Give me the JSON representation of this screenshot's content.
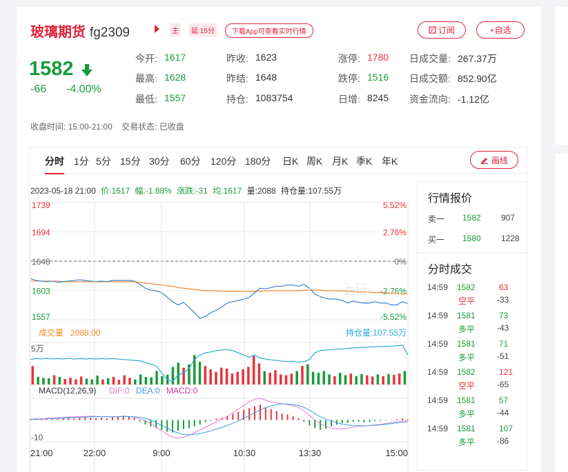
{
  "header": {
    "name": "玻璃期货",
    "code": "fg2309",
    "tag_main": "主",
    "tag_delay": "延 15分",
    "download_label": "下载App可查看实时行情",
    "subscribe_label": "订阅",
    "watch_label": "+自选"
  },
  "quote": {
    "price": "1582",
    "change": "-66",
    "change_pct": "-4.00%",
    "fields": [
      {
        "label": "今开:",
        "value": "1617",
        "color": "green"
      },
      {
        "label": "昨收:",
        "value": "1623",
        "color": "normal"
      },
      {
        "label": "涨停:",
        "value": "1780",
        "color": "red"
      },
      {
        "label": "日成交量:",
        "value": "267.37万",
        "color": "normal"
      },
      {
        "label": "最高:",
        "value": "1628",
        "color": "green"
      },
      {
        "label": "昨结:",
        "value": "1648",
        "color": "normal"
      },
      {
        "label": "跌停:",
        "value": "1516",
        "color": "green"
      },
      {
        "label": "日成交额:",
        "value": "852.90亿",
        "color": "normal"
      },
      {
        "label": "最低:",
        "value": "1557",
        "color": "green"
      },
      {
        "label": "持仓:",
        "value": "1083754",
        "color": "normal"
      },
      {
        "label": "日增:",
        "value": "8245",
        "color": "normal"
      },
      {
        "label": "资金流向:",
        "value": "-1.12亿",
        "color": "normal"
      }
    ]
  },
  "status": {
    "close_time_label": "收盘时间:",
    "close_time": "15:00-21:00",
    "trade_state_label": "交易状态:",
    "trade_state": "已收盘"
  },
  "tabs": [
    "分时",
    "1分",
    "5分",
    "15分",
    "30分",
    "60分",
    "120分",
    "180分",
    "日K",
    "周K",
    "月K",
    "季K",
    "年K"
  ],
  "active_tab": "分时",
  "draw_label": "画线",
  "chart_info": {
    "datetime": "2023-05-18 21:00",
    "price_label": "价:",
    "price": "1617",
    "amp_label": "幅:",
    "amp": "-1.88%",
    "chg_label": "涨跌:",
    "chg": "-31",
    "avg_label": "均:",
    "avg": "1617",
    "vol_label": "量:",
    "vol": "2088",
    "oi_label": "持仓量:",
    "oi": "107.55万"
  },
  "watermark": "上证",
  "chart_data": [
    {
      "type": "line",
      "title": "",
      "y_left_ticks": [
        "1739",
        "1694",
        "1648",
        "1603",
        "1557"
      ],
      "y_right_ticks": [
        "5.52%",
        "2.76%",
        "0%",
        "-2.76%",
        "-5.52%"
      ],
      "x_ticks": [
        "21:00",
        "22:00",
        "9:00",
        "10:30",
        "13:30",
        "15:00"
      ],
      "ylim": [
        1557,
        1739
      ],
      "prev_settle": 1648,
      "series": [
        {
          "values": [
            1621,
            1618,
            1617,
            1616,
            1617,
            1615,
            1616,
            1617,
            1618,
            1619,
            1618,
            1617,
            1616,
            1617,
            1616,
            1618,
            1618,
            1618,
            1618,
            1617,
            1612,
            1606,
            1603,
            1602,
            1599,
            1592,
            1585,
            1580,
            1584,
            1576,
            1568,
            1559,
            1562,
            1568,
            1572,
            1577,
            1583,
            1585,
            1587,
            1589,
            1592,
            1599,
            1606,
            1605,
            1607,
            1609,
            1609,
            1611,
            1611,
            1609,
            1612,
            1606,
            1597,
            1593,
            1590,
            1589,
            1589,
            1587,
            1583,
            1586,
            1584,
            1583,
            1583,
            1585,
            1583,
            1583,
            1580,
            1580,
            1585,
            1582
          ]
        },
        {
          "values": [
            1617,
            1617,
            1617,
            1617,
            1617,
            1617,
            1616,
            1616,
            1616,
            1616,
            1616,
            1616,
            1616,
            1616,
            1616,
            1616,
            1616,
            1616,
            1616,
            1616,
            1615,
            1614,
            1613,
            1612,
            1611,
            1610,
            1609,
            1607,
            1606,
            1605,
            1604,
            1603,
            1602,
            1602,
            1602,
            1601,
            1601,
            1601,
            1601,
            1601,
            1601,
            1601,
            1601,
            1602,
            1602,
            1602,
            1602,
            1602,
            1602,
            1602,
            1603,
            1603,
            1603,
            1603,
            1602,
            1602,
            1602,
            1602,
            1601,
            1601,
            1600,
            1600,
            1600,
            1599,
            1599,
            1599,
            1598,
            1598,
            1597,
            1597
          ]
        }
      ]
    },
    {
      "type": "bar",
      "title": "成交量",
      "value_label": "2088.00",
      "right_label": "持仓量:107.55万",
      "y_ticks": [
        "5万"
      ],
      "ylim": [
        0,
        50000
      ],
      "values": [
        22000,
        9000,
        8000,
        7500,
        11000,
        9000,
        6500,
        8000,
        6000,
        9500,
        7000,
        6000,
        10500,
        6000,
        7500,
        9000,
        5500,
        11000,
        8000,
        6000,
        12000,
        9000,
        8500,
        16000,
        10000,
        11500,
        21000,
        26000,
        20000,
        24000,
        35000,
        27000,
        22000,
        18000,
        15000,
        20000,
        19000,
        13000,
        15000,
        18000,
        21000,
        34000,
        25000,
        16000,
        14000,
        17000,
        12000,
        11000,
        13000,
        16000,
        22000,
        24000,
        15000,
        14000,
        16000,
        12000,
        10000,
        14000,
        11000,
        13000,
        10000,
        12500,
        11000,
        9500,
        12000,
        10000,
        12500,
        11500,
        13000,
        16000
      ],
      "oi_values": [
        1080500,
        1080700,
        1080600,
        1080800,
        1080600,
        1080700,
        1080600,
        1080800,
        1080600,
        1080700,
        1080600,
        1080700,
        1080600,
        1080700,
        1080600,
        1080700,
        1080600,
        1080500,
        1080400,
        1080300,
        1080200,
        1079800,
        1079500,
        1079000,
        1077500,
        1076000,
        1075500,
        1077000,
        1077500,
        1078500,
        1080500,
        1081500,
        1082000,
        1082200,
        1082500,
        1082600,
        1082700,
        1082500,
        1082000,
        1081500,
        1081000,
        1081500,
        1080800,
        1080600,
        1080400,
        1080300,
        1080100,
        1080000,
        1080100,
        1079900,
        1080000,
        1080500,
        1082000,
        1082500,
        1082600,
        1082700,
        1082800,
        1082900,
        1083000,
        1083100,
        1083150,
        1083200,
        1083300,
        1083350,
        1083400,
        1083450,
        1083500,
        1083600,
        1083700,
        1081500
      ]
    },
    {
      "type": "bar",
      "title": "MACD(12,26,9)",
      "dif_label": "DIF:0",
      "dea_label": "DEA:0",
      "macd_label": "MACD:0",
      "y_ticks": [
        "-10"
      ],
      "ylim": [
        -12,
        12
      ],
      "macd": [
        0.5,
        0.8,
        0.6,
        1,
        0.7,
        1.1,
        0.9,
        1.2,
        0.8,
        1.4,
        1.6,
        1.2,
        1,
        1.3,
        0.9,
        1.5,
        1.8,
        2.4,
        2,
        1.2,
        -0.8,
        -2.5,
        -3.5,
        -4.5,
        -5.5,
        -6.5,
        -7,
        -6,
        -5,
        -4.5,
        -3.5,
        -2.5,
        -1.2,
        -0.4,
        0.8,
        1.2,
        2.2,
        3.4,
        4.5,
        5.6,
        6.5,
        7.5,
        8.5,
        7,
        6,
        5,
        3.5,
        3,
        2,
        1,
        -1,
        -3,
        -4.5,
        -5.5,
        -4.8,
        -3.5,
        -2.6,
        -1.8,
        -1.5,
        -1,
        -0.9,
        -1.3,
        -1,
        -0.6,
        -0.5,
        -0.3,
        0.2,
        0.5,
        0.8,
        0.4
      ],
      "dif": [
        0.4,
        0.6,
        0.7,
        0.9,
        1.1,
        1.2,
        1.4,
        1.6,
        1.7,
        1.9,
        2,
        2.1,
        2,
        1.9,
        1.8,
        1.8,
        1.9,
        2.1,
        2,
        1.6,
        0.8,
        -0.5,
        -2,
        -4,
        -6,
        -8,
        -9.5,
        -10,
        -9.5,
        -8.5,
        -7,
        -5.5,
        -4,
        -2.5,
        -1,
        0.5,
        2,
        4,
        6,
        8,
        10,
        11.5,
        12,
        11,
        10,
        9.5,
        9,
        8.5,
        8,
        7,
        5,
        2.5,
        0,
        -2,
        -3.5,
        -4.5,
        -5,
        -4.8,
        -4.5,
        -4,
        -3.5,
        -3.3,
        -3,
        -2.7,
        -2.4,
        -2,
        -1.5,
        -1,
        -0.5,
        -0.5
      ],
      "dea": [
        0.2,
        0.4,
        0.5,
        0.6,
        0.8,
        0.9,
        1,
        1.2,
        1.3,
        1.4,
        1.6,
        1.7,
        1.8,
        1.8,
        1.8,
        1.8,
        1.8,
        1.9,
        1.9,
        1.8,
        1.5,
        1,
        0,
        -1.5,
        -3,
        -4.5,
        -6,
        -7.2,
        -8,
        -8.2,
        -8,
        -7.5,
        -6.8,
        -6,
        -5,
        -4,
        -3,
        -1.8,
        -0.5,
        1,
        2.5,
        4,
        5.5,
        6.8,
        7.8,
        8.5,
        8.8,
        8.8,
        8.5,
        8,
        7,
        5.5,
        3.5,
        1.8,
        0.5,
        -0.5,
        -1.5,
        -2.3,
        -2.8,
        -3.1,
        -3.2,
        -3.2,
        -3.1,
        -2.9,
        -2.7,
        -2.4,
        -2,
        -1.6,
        -1.2,
        -1
      ]
    }
  ],
  "order_book": {
    "title": "行情报价",
    "rows": [
      {
        "label": "卖一",
        "price": "1582",
        "volume": "907"
      },
      {
        "label": "买一",
        "price": "1580",
        "volume": "1228"
      }
    ]
  },
  "trades": {
    "title": "分时成交",
    "rows": [
      {
        "time": "14:59",
        "price": "1582",
        "volume": "63",
        "type": "空平",
        "delta": "-33",
        "vcolor": "red",
        "tcolor": "red"
      },
      {
        "time": "14:59",
        "price": "1581",
        "volume": "73",
        "type": "多平",
        "delta": "-43",
        "vcolor": "green",
        "tcolor": "green"
      },
      {
        "time": "14:59",
        "price": "1581",
        "volume": "71",
        "type": "多平",
        "delta": "-51",
        "vcolor": "green",
        "tcolor": "green"
      },
      {
        "time": "14:59",
        "price": "1582",
        "volume": "121",
        "type": "空平",
        "delta": "-65",
        "vcolor": "red",
        "tcolor": "red"
      },
      {
        "time": "14:59",
        "price": "1581",
        "volume": "57",
        "type": "多平",
        "delta": "-44",
        "vcolor": "green",
        "tcolor": "green"
      },
      {
        "time": "14:59",
        "price": "1581",
        "volume": "107",
        "type": "多平",
        "delta": "-86",
        "vcolor": "green",
        "tcolor": "green"
      }
    ]
  }
}
